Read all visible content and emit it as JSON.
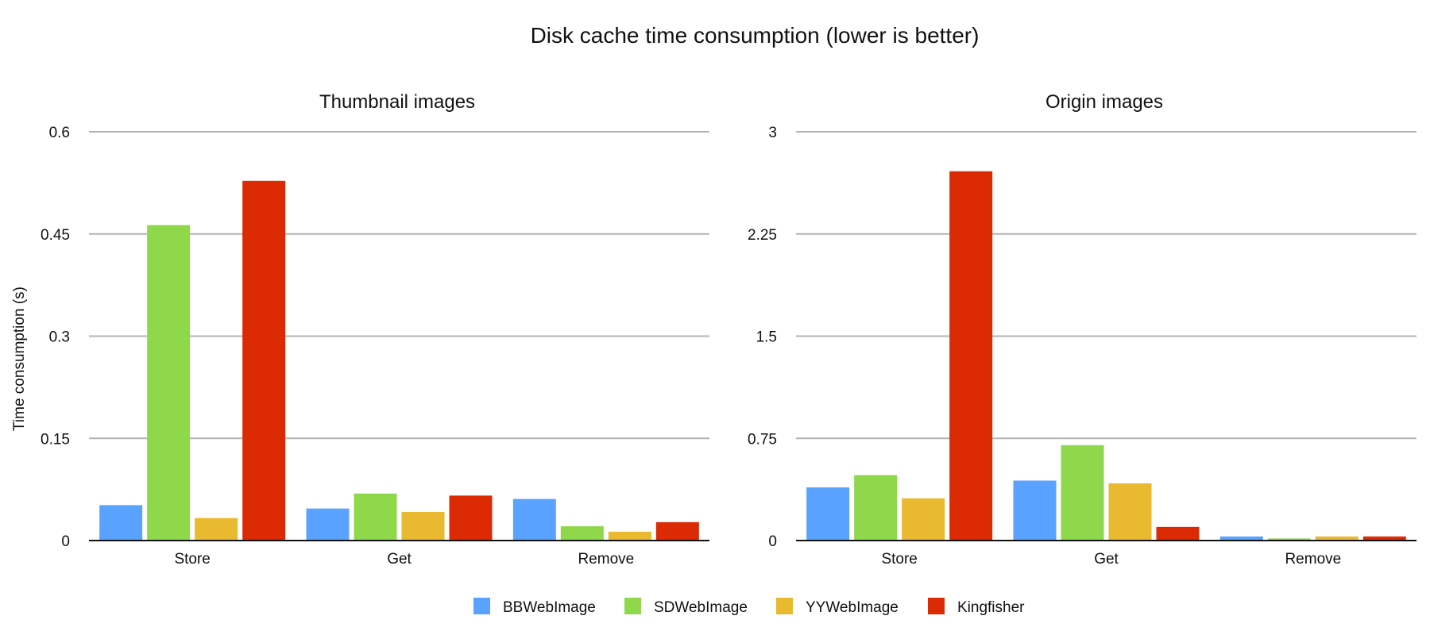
{
  "chart_data": {
    "title": "Disk cache time consumption (lower is better)",
    "ylabel": "Time consumption (s)",
    "legend_position": "bottom",
    "grid": true,
    "legend": [
      {
        "name": "BBWebImage",
        "color": "#5aa2ff"
      },
      {
        "name": "SDWebImage",
        "color": "#8fd84c"
      },
      {
        "name": "YYWebImage",
        "color": "#e9b92f"
      },
      {
        "name": "Kingfisher",
        "color": "#db2a04"
      }
    ],
    "charts": [
      {
        "type": "bar",
        "title": "Thumbnail images",
        "categories": [
          "Store",
          "Get",
          "Remove"
        ],
        "ylim": [
          0,
          0.6
        ],
        "yticks": [
          "0",
          "0.15",
          "0.3",
          "0.45",
          "0.6"
        ],
        "series": [
          {
            "name": "BBWebImage",
            "values": [
              0.052,
              0.047,
              0.061
            ]
          },
          {
            "name": "SDWebImage",
            "values": [
              0.463,
              0.069,
              0.021
            ]
          },
          {
            "name": "YYWebImage",
            "values": [
              0.033,
              0.042,
              0.013
            ]
          },
          {
            "name": "Kingfisher",
            "values": [
              0.528,
              0.066,
              0.027
            ]
          }
        ]
      },
      {
        "type": "bar",
        "title": "Origin images",
        "categories": [
          "Store",
          "Get",
          "Remove"
        ],
        "ylim": [
          0,
          3
        ],
        "yticks": [
          "0",
          "0.75",
          "1.5",
          "2.25",
          "3"
        ],
        "series": [
          {
            "name": "BBWebImage",
            "values": [
              0.39,
              0.44,
              0.03
            ]
          },
          {
            "name": "SDWebImage",
            "values": [
              0.48,
              0.7,
              0.015
            ]
          },
          {
            "name": "YYWebImage",
            "values": [
              0.31,
              0.42,
              0.03
            ]
          },
          {
            "name": "Kingfisher",
            "values": [
              2.71,
              0.1,
              0.03
            ]
          }
        ]
      }
    ]
  }
}
